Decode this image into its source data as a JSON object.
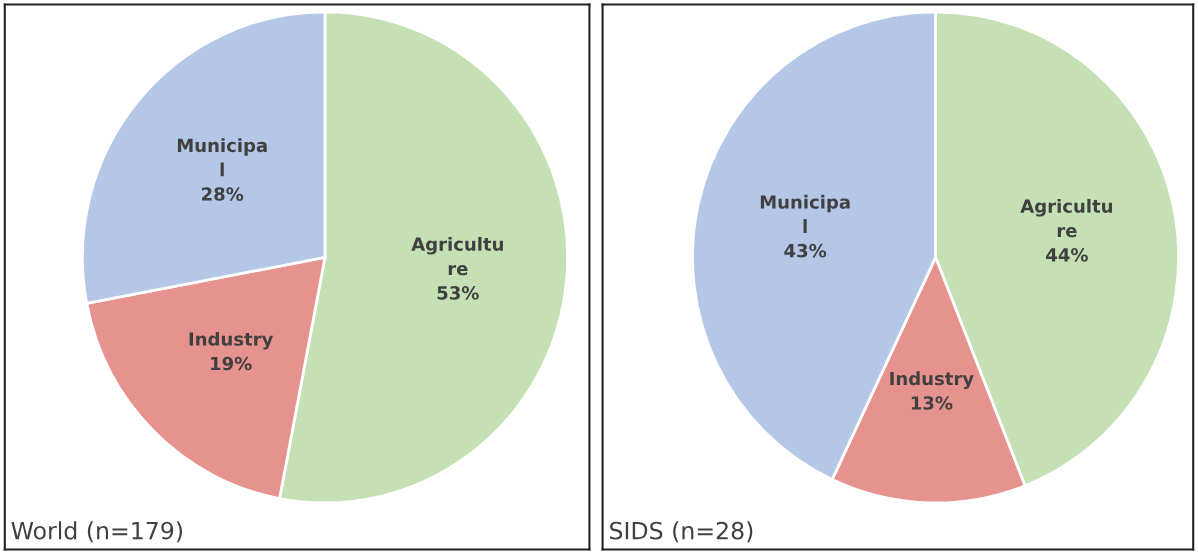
{
  "chart_data": [
    {
      "type": "pie",
      "title": "World (n=179)",
      "categories": [
        "Agricultu\nre",
        "Industry",
        "Municipa\nl"
      ],
      "values": [
        53,
        19,
        28
      ],
      "value_labels": [
        "53%",
        "19%",
        "28%"
      ],
      "colors": [
        "#c5e0b4",
        "#e6928f",
        "#b4c7e7"
      ]
    },
    {
      "type": "pie",
      "title": "SIDS (n=28)",
      "categories": [
        "Agricultu\nre",
        "Industry",
        "Municipa\nl"
      ],
      "values": [
        44,
        13,
        43
      ],
      "value_labels": [
        "44%",
        "13%",
        "43%"
      ],
      "colors": [
        "#c5e0b4",
        "#e6928f",
        "#b4c7e7"
      ]
    }
  ]
}
